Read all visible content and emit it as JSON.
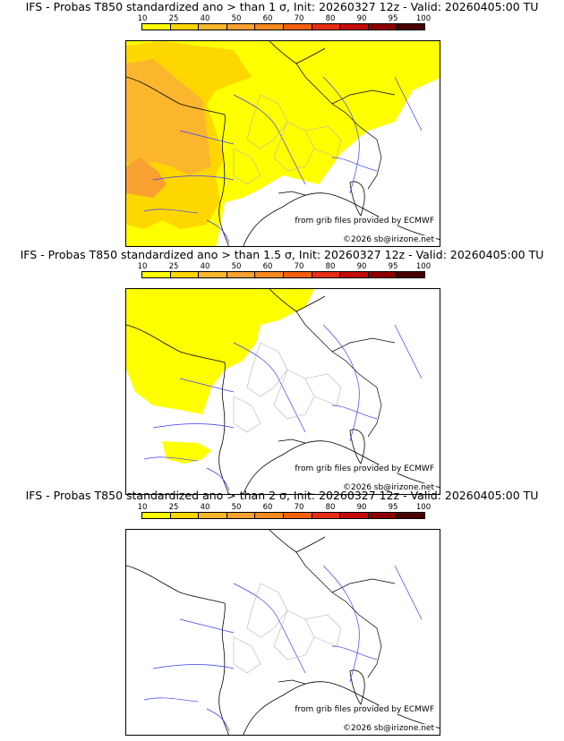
{
  "colorbar": {
    "ticks": [
      "10",
      "25",
      "40",
      "50",
      "60",
      "70",
      "80",
      "90",
      "95",
      "100"
    ],
    "colors": [
      "#ffff00",
      "#ffd700",
      "#fbb62e",
      "#f8a030",
      "#f58a20",
      "#f26010",
      "#e62e14",
      "#c40a0a",
      "#8c0000",
      "#4a0000"
    ]
  },
  "panels": [
    {
      "title": "IFS - Probas T850  standardized ano > than 1 σ, Init: 20260327 12z - Valid: 20260405:00 TU",
      "credit_source": "from grib files provided by ECMWF",
      "credit_copyright": "©2026 sb@irizone.net"
    },
    {
      "title": "IFS - Probas T850  standardized ano > than 1.5 σ, Init: 20260327 12z - Valid: 20260405:00 TU",
      "credit_source": "from grib files provided by ECMWF",
      "credit_copyright": "©2026 sb@irizone.net"
    },
    {
      "title": "IFS - Probas T850  standardized ano > than 2 σ, Init: 20260327 12z - Valid: 20260405:00 TU",
      "credit_source": "from grib files provided by ECMWF",
      "credit_copyright": "©2026 sb@irizone.net"
    }
  ]
}
